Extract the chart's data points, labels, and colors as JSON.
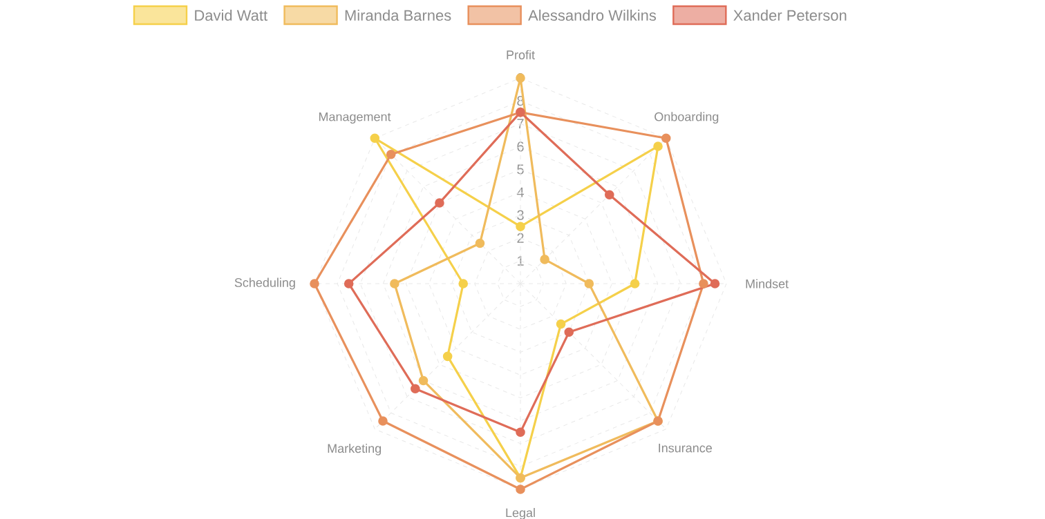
{
  "chart_data": {
    "type": "radar",
    "categories": [
      "Profit",
      "Onboarding",
      "Mindset",
      "Insurance",
      "Legal",
      "Marketing",
      "Scheduling",
      "Management"
    ],
    "series": [
      {
        "name": "David Watt",
        "color": "#f5d04a",
        "values": [
          2.5,
          8.5,
          5,
          2.5,
          8.5,
          4.5,
          2.5,
          9
        ]
      },
      {
        "name": "Miranda Barnes",
        "color": "#f0bb5c",
        "values": [
          9,
          1.5,
          3,
          8.5,
          8.5,
          6,
          5.5,
          2.5
        ]
      },
      {
        "name": "Alessandro Wilkins",
        "color": "#e8905c",
        "values": [
          7.5,
          9,
          8,
          8.5,
          9,
          8.5,
          9,
          8
        ]
      },
      {
        "name": "Xander Peterson",
        "color": "#df6c58",
        "values": [
          7.5,
          5.5,
          8.5,
          3,
          6.5,
          6.5,
          7.5,
          5
        ]
      }
    ],
    "ylim": [
      0,
      9
    ],
    "yticks": [
      1,
      2,
      3,
      4,
      5,
      6,
      7,
      8,
      9
    ],
    "grid": true,
    "legend": "top",
    "marker": "circle",
    "line_style": "solid"
  }
}
